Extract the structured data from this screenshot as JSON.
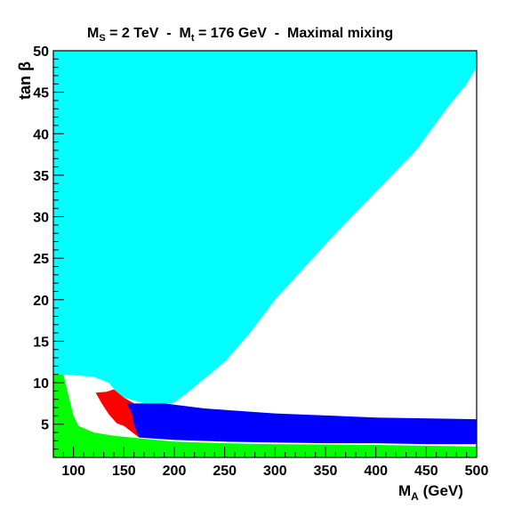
{
  "chart_data": {
    "type": "area",
    "title_parts": {
      "ms_main": "M",
      "ms_sub": "S",
      "ms_rest": " = 2 TeV  -  ",
      "mt_main": "M",
      "mt_sub": "t",
      "mt_rest": " = 176 GeV  -  Maximal mixing"
    },
    "xlabel_parts": {
      "main": "M",
      "sub": "A",
      "rest": " (GeV)"
    },
    "ylabel": "tan β",
    "xlim": [
      80,
      500
    ],
    "ylim": [
      1,
      50
    ],
    "xticks": [
      100,
      150,
      200,
      250,
      300,
      350,
      400,
      450,
      500
    ],
    "yticks": [
      5,
      10,
      15,
      20,
      25,
      30,
      35,
      40,
      45,
      50
    ],
    "grid": false,
    "colors": {
      "cyan": "#00ffff",
      "green": "#00ff00",
      "red": "#ff0000",
      "blue": "#0000ff",
      "frame": "#000000"
    },
    "regions": [
      {
        "color": "cyan",
        "points": [
          [
            80,
            50
          ],
          [
            500,
            50
          ],
          [
            500,
            48
          ],
          [
            490,
            46
          ],
          [
            470,
            43
          ],
          [
            440,
            38
          ],
          [
            400,
            33
          ],
          [
            360,
            28
          ],
          [
            330,
            24
          ],
          [
            300,
            20
          ],
          [
            275,
            16
          ],
          [
            250,
            12.5
          ],
          [
            230,
            10.5
          ],
          [
            215,
            9
          ],
          [
            200,
            7.6
          ],
          [
            190,
            7.4
          ],
          [
            170,
            7.5
          ],
          [
            150,
            8.2
          ],
          [
            142,
            9
          ],
          [
            135,
            10
          ],
          [
            120,
            10.7
          ],
          [
            90,
            11
          ],
          [
            80,
            11
          ]
        ]
      },
      {
        "color": "green",
        "points": [
          [
            80,
            1
          ],
          [
            500,
            1
          ],
          [
            500,
            2.3
          ],
          [
            450,
            2.4
          ],
          [
            400,
            2.5
          ],
          [
            350,
            2.55
          ],
          [
            300,
            2.6
          ],
          [
            250,
            2.7
          ],
          [
            200,
            2.9
          ],
          [
            165,
            3.3
          ],
          [
            140,
            3.6
          ],
          [
            120,
            4
          ],
          [
            105,
            4.8
          ],
          [
            100,
            6
          ],
          [
            96,
            8
          ],
          [
            92,
            10
          ],
          [
            90,
            11
          ],
          [
            80,
            11
          ]
        ]
      },
      {
        "color": "red",
        "points": [
          [
            122,
            8.8
          ],
          [
            133,
            8.9
          ],
          [
            140,
            9.2
          ],
          [
            150,
            8.2
          ],
          [
            160,
            7.5
          ],
          [
            165,
            7.3
          ],
          [
            165,
            3.4
          ],
          [
            150,
            4.8
          ],
          [
            143,
            5.1
          ],
          [
            135,
            6.2
          ],
          [
            128,
            7.5
          ]
        ]
      },
      {
        "color": "blue",
        "points": [
          [
            153,
            7.5
          ],
          [
            190,
            7.5
          ],
          [
            230,
            6.9
          ],
          [
            300,
            6.3
          ],
          [
            400,
            5.8
          ],
          [
            500,
            5.6
          ],
          [
            500,
            2.6
          ],
          [
            450,
            2.6
          ],
          [
            400,
            2.7
          ],
          [
            350,
            2.7
          ],
          [
            300,
            2.8
          ],
          [
            250,
            2.9
          ],
          [
            200,
            3.1
          ],
          [
            175,
            3.3
          ],
          [
            165,
            3.4
          ],
          [
            160,
            5
          ],
          [
            158,
            6.3
          ],
          [
            153,
            7.5
          ]
        ]
      }
    ]
  }
}
